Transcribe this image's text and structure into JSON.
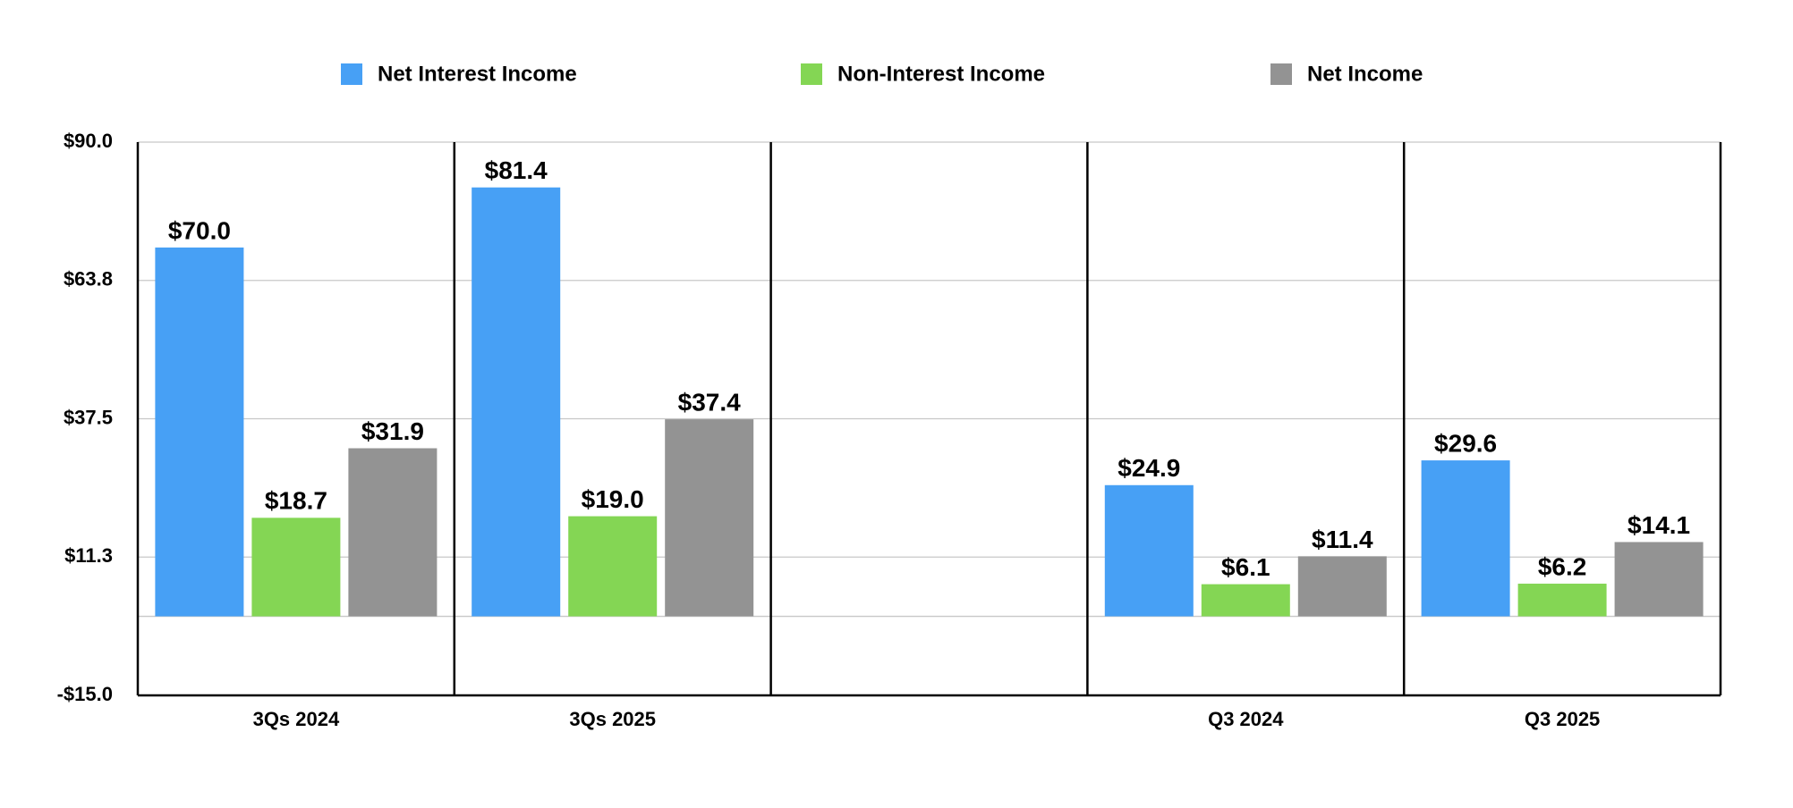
{
  "chart_data": {
    "type": "bar",
    "categories": [
      "3Qs 2024",
      "3Qs 2025",
      null,
      "Q3 2024",
      "Q3 2025"
    ],
    "series": [
      {
        "name": "Net Interest Income",
        "color": "#47a0f5",
        "values": [
          70.0,
          81.4,
          null,
          24.9,
          29.6
        ],
        "value_labels": [
          "$70.0",
          "$81.4",
          null,
          "$24.9",
          "$29.6"
        ]
      },
      {
        "name": "Non-Interest Income",
        "color": "#84d654",
        "values": [
          18.7,
          19.0,
          null,
          6.1,
          6.2
        ],
        "value_labels": [
          "$18.7",
          "$19.0",
          null,
          "$6.1",
          "$6.2"
        ]
      },
      {
        "name": "Net Income",
        "color": "#939393",
        "values": [
          31.9,
          37.4,
          null,
          11.4,
          14.1
        ],
        "value_labels": [
          "$31.9",
          "$37.4",
          null,
          "$11.4",
          "$14.1"
        ]
      }
    ],
    "ylim": [
      -15,
      90
    ],
    "yticks": [
      {
        "value": -15,
        "label": "-$15.0"
      },
      {
        "value": 11.25,
        "label": "$11.3"
      },
      {
        "value": 37.5,
        "label": "$37.5"
      },
      {
        "value": 63.75,
        "label": "$63.8"
      },
      {
        "value": 90,
        "label": "$90.0"
      }
    ],
    "grid": true,
    "legend": "top"
  }
}
